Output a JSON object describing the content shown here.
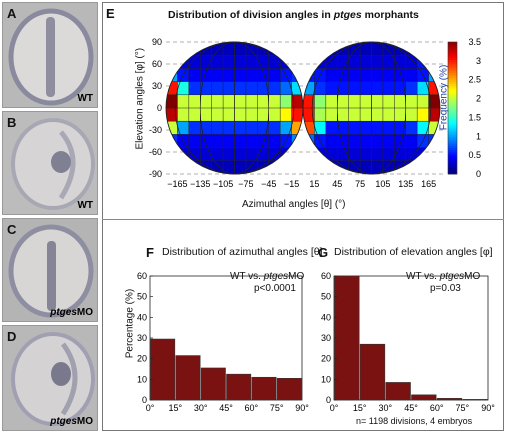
{
  "panels": {
    "A": {
      "letter": "A",
      "label": "WT"
    },
    "B": {
      "letter": "B",
      "label": "WT"
    },
    "C": {
      "letter": "C",
      "label_italic": "ptges",
      "label_rest": "MO"
    },
    "D": {
      "letter": "D",
      "label_italic": "ptges",
      "label_rest": "MO"
    }
  },
  "panelE": {
    "letter": "E",
    "title_pre": "Distribution of division angles in ",
    "title_italic": "ptges",
    "title_post": " morphants",
    "ylabel": "Elevation angles [φ] (°)",
    "xlabel": "Azimuthal angles [θ] (°)",
    "colorbar_label": "Frequency (%)"
  },
  "panelF": {
    "letter": "F",
    "title": "Distribution of azimuthal angles [θ]",
    "ann1_pre": "WT vs. ",
    "ann1_italic": "ptges",
    "ann1_post": "MO",
    "ann2": "p<0.0001",
    "ylabel": "Percentage (%)"
  },
  "panelG": {
    "letter": "G",
    "title": "Distribution of elevation angles [φ]",
    "ann1_pre": "WT vs. ",
    "ann1_italic": "ptges",
    "ann1_post": "MO",
    "ann2": "p=0.03"
  },
  "footer": "n= 1198 divisions, 4 embryos",
  "colors": {
    "bar": "#7b1212",
    "grid": "#555555"
  },
  "chart_data": [
    {
      "type": "heatmap",
      "title": "Distribution of division angles in ptges morphants",
      "xlabel": "Azimuthal angles [θ] (°)",
      "ylabel": "Elevation angles [φ] (°)",
      "x_ticks": [
        "-165",
        "-135",
        "-105",
        "-75",
        "-45",
        "-15",
        "15",
        "45",
        "75",
        "105",
        "135",
        "165"
      ],
      "y_ticks": [
        "-90",
        "-60",
        "-30",
        "0",
        "30",
        "60",
        "90"
      ],
      "ylim": [
        -90,
        90
      ],
      "colorbar_label": "Frequency (%)",
      "colorbar_ticks": [
        "0",
        "0.5",
        "1",
        "1.5",
        "2",
        "2.5",
        "3",
        "3.5"
      ],
      "zlim": [
        0,
        3.5
      ],
      "rows_phi": [
        67.5,
        52.5,
        37.5,
        22.5,
        7.5,
        -7.5,
        -22.5,
        -37.5,
        -52.5,
        -67.5
      ],
      "cols_theta": [
        -165,
        -150,
        -135,
        -120,
        -105,
        -90,
        -75,
        -60,
        -45,
        -30,
        -15,
        0,
        15,
        30,
        45,
        60,
        75,
        90,
        105,
        120,
        135,
        150,
        165,
        180
      ],
      "values": [
        [
          0.2,
          0.2,
          0.2,
          0.2,
          0.2,
          0.2,
          0.2,
          0.2,
          0.2,
          0.2,
          0.2,
          0.2,
          0.2,
          0.2,
          0.2,
          0.2,
          0.2,
          0.2,
          0.2,
          0.2,
          0.2,
          0.2,
          0.2,
          0.2
        ],
        [
          0.5,
          0.3,
          0.3,
          0.3,
          0.3,
          0.3,
          0.3,
          0.3,
          0.3,
          0.3,
          0.3,
          0.5,
          0.5,
          0.3,
          0.3,
          0.3,
          0.3,
          0.3,
          0.3,
          0.3,
          0.3,
          0.3,
          0.5,
          0.5
        ],
        [
          1.0,
          0.5,
          0.4,
          0.4,
          0.4,
          0.4,
          0.4,
          0.4,
          0.4,
          0.4,
          0.5,
          0.6,
          0.5,
          0.5,
          0.4,
          0.4,
          0.4,
          0.4,
          0.4,
          0.4,
          0.4,
          0.4,
          0.5,
          1.0
        ],
        [
          3.0,
          1.4,
          0.6,
          0.6,
          0.6,
          0.6,
          0.6,
          0.6,
          0.6,
          0.6,
          0.8,
          1.2,
          1.0,
          0.6,
          0.5,
          0.5,
          0.5,
          0.5,
          0.5,
          0.5,
          0.5,
          0.6,
          1.2,
          3.0
        ],
        [
          3.5,
          2.0,
          2.0,
          2.0,
          2.0,
          2.0,
          2.0,
          2.0,
          2.0,
          2.0,
          1.8,
          3.3,
          3.0,
          1.8,
          2.0,
          2.0,
          2.0,
          2.0,
          2.0,
          2.0,
          2.0,
          2.0,
          2.0,
          3.5
        ],
        [
          3.3,
          2.0,
          2.0,
          2.0,
          2.0,
          2.0,
          2.0,
          2.0,
          2.0,
          2.0,
          2.2,
          3.0,
          3.0,
          1.9,
          2.0,
          2.0,
          2.0,
          2.0,
          2.0,
          2.0,
          2.0,
          2.0,
          2.2,
          3.3
        ],
        [
          2.0,
          1.0,
          0.6,
          0.6,
          0.6,
          0.6,
          0.6,
          0.6,
          0.6,
          0.6,
          1.0,
          2.5,
          2.8,
          1.3,
          0.5,
          0.5,
          0.5,
          0.5,
          0.5,
          0.5,
          0.5,
          0.6,
          1.3,
          2.0
        ],
        [
          0.6,
          0.4,
          0.4,
          0.4,
          0.4,
          0.4,
          0.4,
          0.4,
          0.4,
          0.4,
          0.5,
          0.9,
          0.8,
          0.5,
          0.4,
          0.4,
          0.4,
          0.4,
          0.4,
          0.4,
          0.4,
          0.4,
          0.6,
          0.6
        ],
        [
          0.3,
          0.3,
          0.3,
          0.3,
          0.3,
          0.3,
          0.3,
          0.3,
          0.3,
          0.3,
          0.3,
          0.4,
          0.4,
          0.3,
          0.3,
          0.3,
          0.3,
          0.3,
          0.3,
          0.3,
          0.3,
          0.3,
          0.3,
          0.3
        ],
        [
          0.2,
          0.2,
          0.2,
          0.2,
          0.2,
          0.2,
          0.2,
          0.2,
          0.2,
          0.2,
          0.2,
          0.2,
          0.2,
          0.2,
          0.2,
          0.2,
          0.2,
          0.2,
          0.2,
          0.2,
          0.2,
          0.2,
          0.2,
          0.2
        ]
      ]
    },
    {
      "type": "bar",
      "title": "Distribution of azimuthal angles [θ]",
      "ylabel": "Percentage (%)",
      "x_ticks": [
        "0°",
        "15°",
        "30°",
        "45°",
        "60°",
        "75°",
        "90°"
      ],
      "y_ticks": [
        "0",
        "10",
        "20",
        "30",
        "40",
        "50",
        "60"
      ],
      "bin_edges": [
        0,
        15,
        30,
        45,
        60,
        75,
        90
      ],
      "values": [
        29.5,
        21.5,
        15.5,
        12.5,
        11.0,
        10.5
      ],
      "ylim": [
        0,
        60
      ]
    },
    {
      "type": "bar",
      "title": "Distribution of elevation angles [φ]",
      "x_ticks": [
        "0°",
        "15°",
        "30°",
        "45°",
        "60°",
        "75°",
        "90°"
      ],
      "y_ticks": [
        "0",
        "10",
        "20",
        "30",
        "40",
        "50",
        "60"
      ],
      "bin_edges": [
        0,
        15,
        30,
        45,
        60,
        75,
        90
      ],
      "values": [
        61.0,
        27.0,
        8.5,
        2.5,
        0.8,
        0.3
      ],
      "ylim": [
        0,
        60
      ]
    }
  ]
}
